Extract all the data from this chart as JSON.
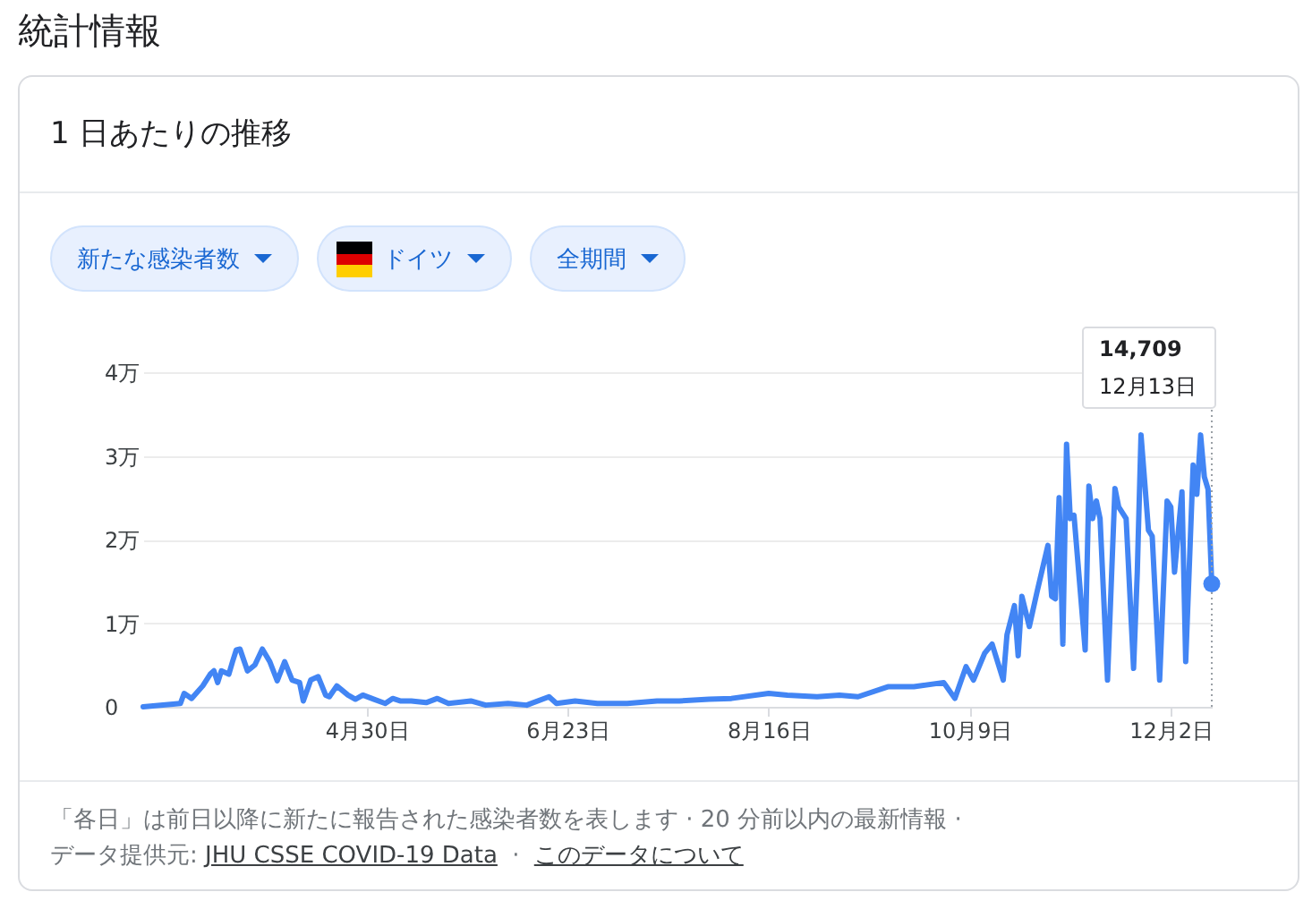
{
  "chart_data": {
    "type": "line",
    "title": "統計情報",
    "subtitle": "1 日あたりの推移",
    "x": [
      "--03-01",
      "--03-11",
      "--03-12",
      "--03-14",
      "--03-17",
      "--03-19",
      "--03-20",
      "--03-21",
      "--03-22",
      "--03-24",
      "--03-25",
      "--03-26",
      "--03-27",
      "--03-29",
      "--03-31",
      "--04-02",
      "--04-04",
      "--04-06",
      "--04-08",
      "--04-10",
      "--04-12",
      "--04-13",
      "--04-15",
      "--04-17",
      "--04-19",
      "--04-20",
      "--04-22",
      "--04-25",
      "--04-27",
      "--04-29",
      "--05-02",
      "--05-05",
      "--05-07",
      "--05-09",
      "--05-12",
      "--05-16",
      "--05-19",
      "--05-22",
      "--05-28",
      "--06-01",
      "--06-07",
      "--06-12",
      "--06-18",
      "--06-20",
      "--06-25",
      "--07-01",
      "--07-09",
      "--07-17",
      "--07-23",
      "--07-31",
      "--08-06",
      "--08-16",
      "--08-21",
      "--08-29",
      "--09-04",
      "--09-09",
      "--09-17",
      "--09-24",
      "--10-02",
      "--10-05",
      "--10-08",
      "--10-10",
      "--10-13",
      "--10-15",
      "--10-18",
      "--10-19",
      "--10-21",
      "--10-22",
      "--10-23",
      "--10-25",
      "--10-27",
      "--10-30",
      "--10-31",
      "--11-01",
      "--11-02",
      "--11-03",
      "--11-04",
      "--11-05",
      "--11-06",
      "--11-09",
      "--11-10",
      "--11-11",
      "--11-12",
      "--11-13",
      "--11-15",
      "--11-17",
      "--11-18",
      "--11-20",
      "--11-22",
      "--11-23",
      "--11-24",
      "--11-26",
      "--11-27",
      "--11-29",
      "--12-01",
      "--12-02",
      "--12-03",
      "--12-05",
      "--12-06",
      "--12-08",
      "--12-09",
      "--12-10",
      "--12-11",
      "--12-12",
      "--12-13"
    ],
    "series": [
      {
        "color": "#4285f4",
        "values": [
          0,
          0.04,
          0.16,
          0.1,
          0.25,
          0.39,
          0.43,
          0.29,
          0.43,
          0.39,
          0.54,
          0.68,
          0.69,
          0.43,
          0.5,
          0.69,
          0.54,
          0.31,
          0.54,
          0.32,
          0.29,
          0.07,
          0.32,
          0.36,
          0.14,
          0.12,
          0.25,
          0.14,
          0.09,
          0.14,
          0.09,
          0.04,
          0.1,
          0.07,
          0.07,
          0.05,
          0.1,
          0.04,
          0.07,
          0.02,
          0.04,
          0.02,
          0.12,
          0.04,
          0.07,
          0.04,
          0.04,
          0.07,
          0.07,
          0.09,
          0.1,
          0.16,
          0.14,
          0.12,
          0.14,
          0.12,
          0.24,
          0.24,
          0.29,
          0.1,
          0.48,
          0.32,
          0.64,
          0.75,
          0.32,
          0.86,
          1.21,
          0.61,
          1.32,
          0.96,
          1.36,
          1.93,
          1.32,
          1.29,
          2.5,
          0.75,
          3.14,
          2.25,
          2.29,
          0.68,
          2.64,
          2.25,
          2.46,
          2.25,
          0.32,
          2.61,
          2.39,
          2.25,
          0.46,
          1.61,
          3.25,
          2.11,
          2.04,
          0.32,
          2.46,
          2.39,
          1.61,
          2.57,
          0.54,
          2.89,
          2.54,
          3.25,
          2.75,
          2.6,
          1.47
        ]
      }
    ],
    "xlim": [
      "--03-01",
      "--12-13"
    ],
    "xticks": [
      {
        "value": "--04-30",
        "label": "4月30日"
      },
      {
        "value": "--06-23",
        "label": "6月23日"
      },
      {
        "value": "--08-16",
        "label": "8月16日"
      },
      {
        "value": "--10-09",
        "label": "10月9日"
      },
      {
        "value": "--12-02",
        "label": "12月2日"
      }
    ],
    "ylim": [
      0,
      4
    ],
    "yticks": [
      0,
      {
        "value": 1,
        "label": "1万"
      },
      {
        "value": 2,
        "label": "2万"
      },
      {
        "value": 3,
        "label": "3万"
      },
      {
        "value": 4,
        "label": "4万"
      }
    ],
    "grid": "y",
    "ref_lines": [
      {
        "axis": "x",
        "value": "--12-13",
        "line_style": "dotted",
        "color": "#9aa0a6"
      }
    ],
    "annotations": [
      "新たな感染者数",
      "ドイツ",
      "全期間",
      "「各日」は前日以降に新たに報告された感染者数を表します · 20 分前以内の最新情報 ·",
      "データ提供元:",
      "JHU CSSE COVID-19 Data",
      "·",
      "このデータについて",
      "14,709",
      "12月13日"
    ]
  }
}
